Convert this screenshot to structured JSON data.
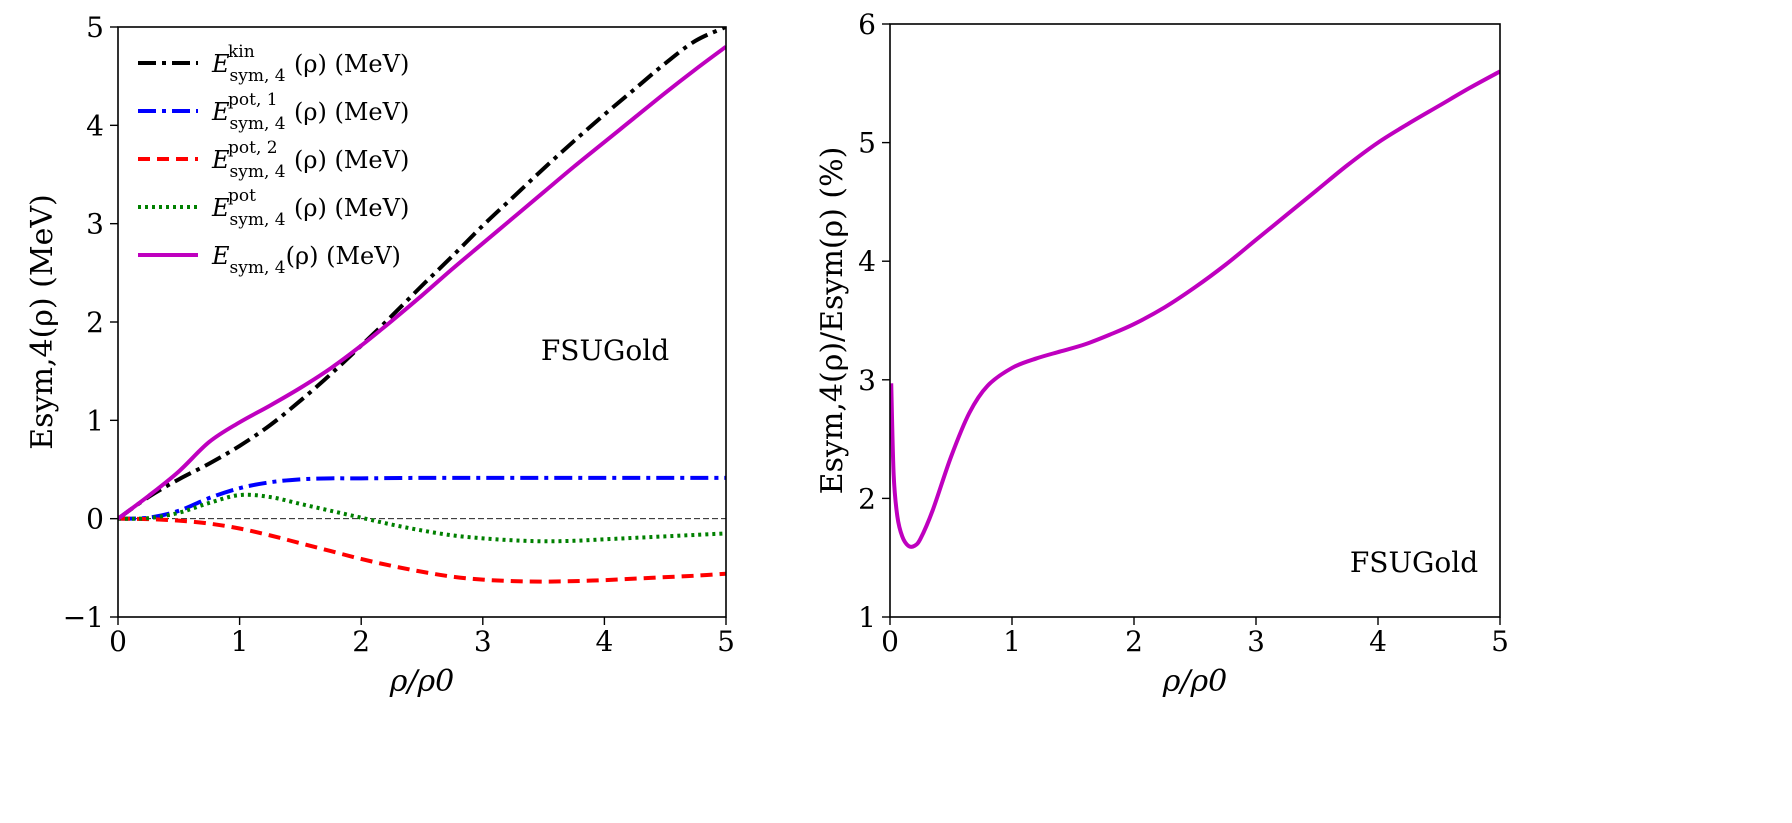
{
  "chart_data": [
    {
      "type": "line",
      "annotation": "FSUGold",
      "xlabel": "ρ/ρ0",
      "ylabel": "Esym,4(ρ) (MeV)",
      "xlim": [
        0,
        5
      ],
      "ylim": [
        -1,
        5
      ],
      "xticks": [
        "0",
        "1",
        "2",
        "3",
        "4",
        "5"
      ],
      "yticks": [
        "−1",
        "0",
        "1",
        "2",
        "3",
        "4",
        "5"
      ],
      "grid": false,
      "legend_position": "upper-left",
      "zero_line": true,
      "series": [
        {
          "name": "Esym,4kin(ρ) (MeV)",
          "legend": {
            "base": "E",
            "sub": "sym, 4",
            "sup": "kin",
            "tail": "(ρ) (MeV)"
          },
          "color": "#000000",
          "style": "dashdot",
          "x": [
            0,
            0.25,
            0.5,
            0.75,
            1.0,
            1.25,
            1.5,
            1.75,
            2.0,
            2.25,
            2.5,
            2.75,
            3.0,
            3.25,
            3.5,
            3.75,
            4.0,
            4.25,
            4.5,
            4.75,
            5.0
          ],
          "y": [
            0,
            0.22,
            0.4,
            0.56,
            0.74,
            0.95,
            1.2,
            1.47,
            1.76,
            2.06,
            2.37,
            2.67,
            2.98,
            3.27,
            3.56,
            3.84,
            4.11,
            4.37,
            4.63,
            4.86,
            5.0
          ]
        },
        {
          "name": "Esym,4pot,1(ρ) (MeV)",
          "legend": {
            "base": "E",
            "sub": "sym, 4",
            "sup": "pot, 1",
            "tail": "(ρ) (MeV)"
          },
          "color": "#0000ff",
          "style": "dashdot",
          "x": [
            0,
            0.25,
            0.5,
            0.75,
            1.0,
            1.25,
            1.5,
            1.75,
            2.0,
            2.5,
            3.0,
            3.5,
            4.0,
            4.5,
            5.0
          ],
          "y": [
            0,
            0.01,
            0.08,
            0.21,
            0.31,
            0.37,
            0.4,
            0.41,
            0.41,
            0.415,
            0.415,
            0.415,
            0.415,
            0.415,
            0.415
          ]
        },
        {
          "name": "Esym,4pot,2(ρ) (MeV)",
          "legend": {
            "base": "E",
            "sub": "sym, 4",
            "sup": "pot, 2",
            "tail": "(ρ) (MeV)"
          },
          "color": "#ff0000",
          "style": "dashed",
          "x": [
            0,
            0.25,
            0.5,
            0.75,
            1.0,
            1.25,
            1.5,
            1.75,
            2.0,
            2.25,
            2.5,
            2.75,
            3.0,
            3.25,
            3.5,
            3.75,
            4.0,
            4.25,
            4.5,
            4.75,
            5.0
          ],
          "y": [
            0,
            -0.005,
            -0.02,
            -0.05,
            -0.1,
            -0.17,
            -0.25,
            -0.33,
            -0.41,
            -0.48,
            -0.54,
            -0.59,
            -0.62,
            -0.635,
            -0.64,
            -0.635,
            -0.625,
            -0.61,
            -0.595,
            -0.58,
            -0.56
          ]
        },
        {
          "name": "Esym,4pot(ρ) (MeV)",
          "legend": {
            "base": "E",
            "sub": "sym, 4",
            "sup": "pot",
            "tail": "(ρ) (MeV)"
          },
          "color": "#008000",
          "style": "dotted",
          "x": [
            0,
            0.25,
            0.5,
            0.75,
            1.0,
            1.25,
            1.5,
            1.75,
            2.0,
            2.25,
            2.5,
            2.75,
            3.0,
            3.25,
            3.5,
            3.75,
            4.0,
            4.25,
            4.5,
            4.75,
            5.0
          ],
          "y": [
            0,
            0.005,
            0.06,
            0.16,
            0.24,
            0.22,
            0.15,
            0.08,
            0.01,
            -0.06,
            -0.12,
            -0.17,
            -0.2,
            -0.22,
            -0.23,
            -0.225,
            -0.21,
            -0.195,
            -0.18,
            -0.165,
            -0.15
          ]
        },
        {
          "name": "Esym,4(ρ) (MeV)",
          "legend": {
            "base": "E",
            "sub": "sym, 4",
            "sup": "",
            "tail": "(ρ) (MeV)"
          },
          "color": "#bf00bf",
          "style": "solid",
          "x": [
            0,
            0.25,
            0.5,
            0.75,
            1.0,
            1.25,
            1.5,
            1.75,
            2.0,
            2.25,
            2.5,
            2.75,
            3.0,
            3.25,
            3.5,
            3.75,
            4.0,
            4.25,
            4.5,
            4.75,
            5.0
          ],
          "y": [
            0,
            0.23,
            0.48,
            0.78,
            0.98,
            1.15,
            1.33,
            1.53,
            1.76,
            2.01,
            2.27,
            2.54,
            2.8,
            3.06,
            3.32,
            3.58,
            3.83,
            4.08,
            4.33,
            4.57,
            4.8
          ]
        }
      ]
    },
    {
      "type": "line",
      "annotation": "FSUGold",
      "xlabel": "ρ/ρ0",
      "ylabel": "Esym,4(ρ)/Esym(ρ) (%)",
      "xlim": [
        0,
        5
      ],
      "ylim": [
        1,
        6
      ],
      "xticks": [
        "0",
        "1",
        "2",
        "3",
        "4",
        "5"
      ],
      "yticks": [
        "1",
        "2",
        "3",
        "4",
        "5",
        "6"
      ],
      "grid": false,
      "legend_position": "none",
      "series": [
        {
          "color": "#bf00bf",
          "style": "solid",
          "x": [
            0.01,
            0.03,
            0.06,
            0.1,
            0.15,
            0.2,
            0.25,
            0.35,
            0.5,
            0.65,
            0.8,
            1.0,
            1.2,
            1.4,
            1.6,
            1.8,
            2.0,
            2.25,
            2.5,
            2.75,
            3.0,
            3.25,
            3.5,
            3.75,
            4.0,
            4.25,
            4.5,
            4.75,
            5.0
          ],
          "y": [
            2.97,
            2.2,
            1.85,
            1.68,
            1.6,
            1.6,
            1.66,
            1.9,
            2.35,
            2.72,
            2.95,
            3.1,
            3.18,
            3.24,
            3.3,
            3.38,
            3.47,
            3.61,
            3.78,
            3.97,
            4.18,
            4.39,
            4.6,
            4.81,
            5.0,
            5.16,
            5.31,
            5.46,
            5.6
          ]
        }
      ]
    }
  ]
}
